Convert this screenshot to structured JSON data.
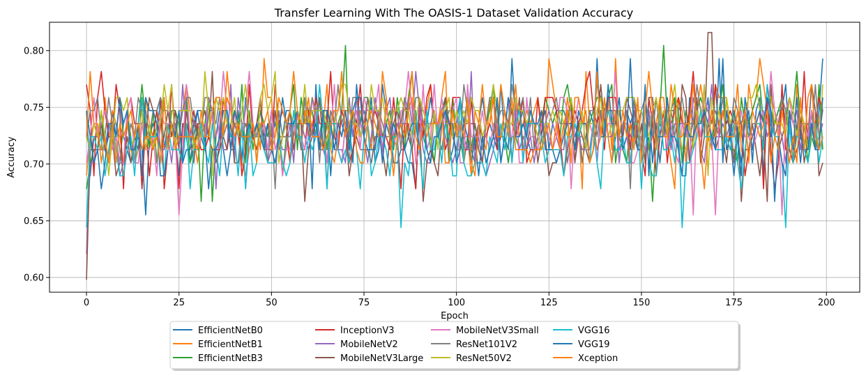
{
  "chart_data": {
    "type": "line",
    "title": "Transfer Learning With The OASIS-1 Dataset Validation Accuracy",
    "xlabel": "Epoch",
    "ylabel": "Accuracy",
    "xlim": [
      -10,
      209
    ],
    "ylim": [
      0.587,
      0.825
    ],
    "xticks": [
      0,
      25,
      50,
      75,
      100,
      125,
      150,
      175,
      200
    ],
    "yticks": [
      0.6,
      0.65,
      0.7,
      0.75,
      0.8
    ],
    "grid": true,
    "legend_position": "bottom-center",
    "legend_columns": 5,
    "epochs": 200,
    "series": [
      {
        "name": "EfficientNetB0",
        "color": "#1f77b4",
        "start": 0.747,
        "mean": 0.729,
        "spread": 0.025,
        "min": 0.655,
        "max": 0.793,
        "seed": 11
      },
      {
        "name": "EfficientNetB1",
        "color": "#ff7f0e",
        "start": 0.69,
        "mean": 0.735,
        "spread": 0.025,
        "min": 0.678,
        "max": 0.793,
        "seed": 23
      },
      {
        "name": "EfficientNetB3",
        "color": "#2ca02c",
        "start": 0.678,
        "mean": 0.733,
        "spread": 0.025,
        "min": 0.667,
        "max": 0.805,
        "seed": 37
      },
      {
        "name": "InceptionV3",
        "color": "#d62728",
        "start": 0.77,
        "mean": 0.732,
        "spread": 0.025,
        "min": 0.678,
        "max": 0.782,
        "seed": 41
      },
      {
        "name": "MobileNetV2",
        "color": "#9467bd",
        "start": 0.621,
        "mean": 0.728,
        "spread": 0.022,
        "min": 0.678,
        "max": 0.782,
        "seed": 53
      },
      {
        "name": "MobileNetV3Large",
        "color": "#8c564b",
        "start": 0.598,
        "mean": 0.727,
        "spread": 0.022,
        "min": 0.667,
        "max": 0.816,
        "seed": 67
      },
      {
        "name": "MobileNetV3Small",
        "color": "#e377c2",
        "start": 0.701,
        "mean": 0.73,
        "spread": 0.022,
        "min": 0.655,
        "max": 0.782,
        "seed": 71
      },
      {
        "name": "ResNet101V2",
        "color": "#7f7f7f",
        "start": 0.724,
        "mean": 0.738,
        "spread": 0.018,
        "min": 0.678,
        "max": 0.77,
        "seed": 83
      },
      {
        "name": "ResNet50V2",
        "color": "#bcbd22",
        "start": 0.724,
        "mean": 0.74,
        "spread": 0.02,
        "min": 0.69,
        "max": 0.793,
        "seed": 97
      },
      {
        "name": "VGG16",
        "color": "#17becf",
        "start": 0.644,
        "mean": 0.716,
        "spread": 0.022,
        "min": 0.644,
        "max": 0.77,
        "seed": 101
      },
      {
        "name": "VGG19",
        "color": "#1f77b4",
        "start": 0.747,
        "mean": 0.727,
        "spread": 0.022,
        "min": 0.667,
        "max": 0.793,
        "seed": 113
      },
      {
        "name": "Xception",
        "color": "#ff7f0e",
        "start": 0.724,
        "mean": 0.73,
        "spread": 0.022,
        "min": 0.678,
        "max": 0.782,
        "seed": 127
      }
    ]
  }
}
